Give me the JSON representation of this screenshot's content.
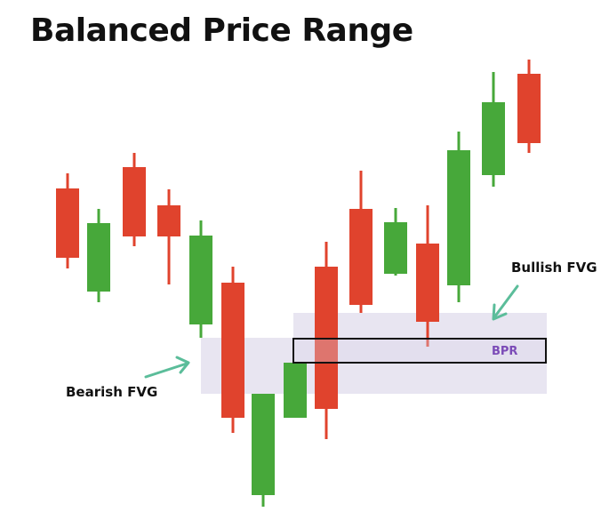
{
  "title": "Balanced Price Range",
  "labels": {
    "bearish_fvg": "Bearish FVG",
    "bullish_fvg": "Bullish FVG",
    "bpr": "BPR"
  },
  "colors": {
    "bullish": "#47a83a",
    "bearish": "#e0432d",
    "fvg_zone": "#d9d3e8",
    "bpr_outline": "#111111",
    "bpr_text": "#7b4bb7",
    "arrow": "#5bbd9a"
  }
}
